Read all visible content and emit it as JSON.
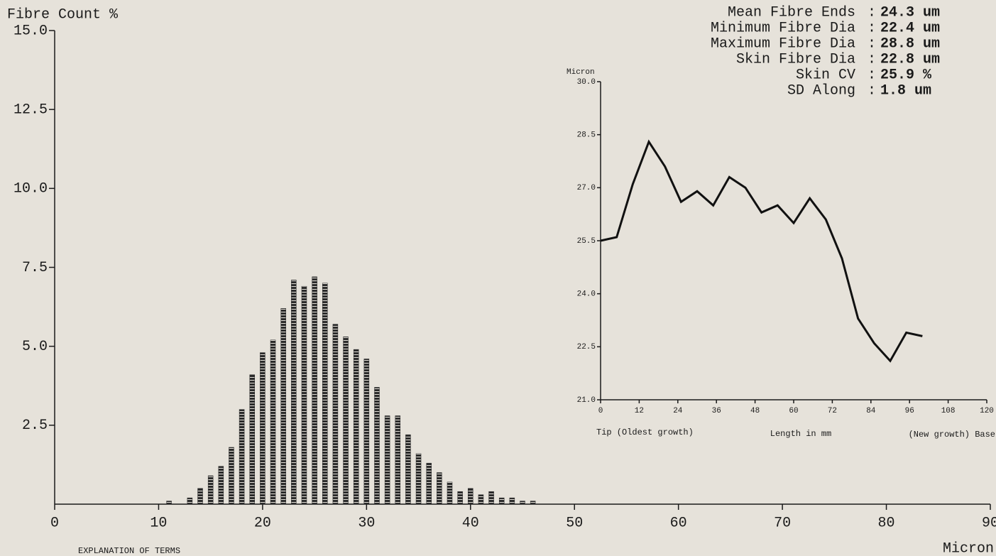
{
  "chart_data": [
    {
      "type": "bar",
      "ylabel": "Fibre Count %",
      "xlabel": "Micron",
      "color": "#2a2a2a",
      "x": [
        11,
        12,
        13,
        14,
        15,
        16,
        17,
        18,
        19,
        20,
        21,
        22,
        23,
        24,
        25,
        26,
        27,
        28,
        29,
        30,
        31,
        32,
        33,
        34,
        35,
        36,
        37,
        38,
        39,
        40,
        41,
        42,
        43,
        44,
        45,
        46
      ],
      "values": [
        0.1,
        0,
        0.2,
        0.5,
        0.9,
        1.2,
        1.8,
        3.0,
        4.1,
        4.8,
        5.2,
        6.2,
        7.1,
        6.9,
        7.2,
        7.0,
        5.7,
        5.3,
        4.9,
        4.6,
        3.7,
        2.8,
        2.8,
        2.2,
        1.6,
        1.3,
        1.0,
        0.7,
        0.4,
        0.5,
        0.3,
        0.4,
        0.2,
        0.2,
        0.1,
        0.1
      ],
      "xlim": [
        0,
        90
      ],
      "ylim": [
        0,
        15
      ],
      "xticks": [
        0,
        10,
        20,
        30,
        40,
        50,
        60,
        70,
        80,
        90
      ],
      "yticks": [
        2.5,
        {
          "value": 5,
          "label": "5.0"
        },
        7.5,
        {
          "value": 10,
          "label": "10.0"
        },
        12.5,
        {
          "value": 15,
          "label": "15.0"
        }
      ]
    },
    {
      "type": "line",
      "ylabel": "Micron",
      "xlabel": "Length in mm",
      "color": "#111111",
      "annotations": [
        "Tip (Oldest growth)",
        "(New growth) Base"
      ],
      "x": [
        0,
        5,
        10,
        15,
        20,
        25,
        30,
        35,
        40,
        45,
        50,
        55,
        60,
        65,
        70,
        75,
        80,
        85,
        90,
        95,
        100
      ],
      "values": [
        25.5,
        25.6,
        27.1,
        28.3,
        27.6,
        26.6,
        26.9,
        26.5,
        27.3,
        27.0,
        26.3,
        26.5,
        26.0,
        26.7,
        26.1,
        25.0,
        23.3,
        22.6,
        22.1,
        22.9,
        22.8
      ],
      "xlim": [
        0,
        120
      ],
      "ylim": [
        21,
        30
      ],
      "xticks": [
        0,
        12,
        24,
        36,
        48,
        60,
        72,
        84,
        96,
        108,
        120
      ],
      "yticks": [
        {
          "value": 21,
          "label": "21.0"
        },
        22.5,
        {
          "value": 24,
          "label": "24.0"
        },
        25.5,
        {
          "value": 27,
          "label": "27.0"
        },
        28.5,
        {
          "value": 30,
          "label": "30.0"
        }
      ]
    }
  ],
  "separator": ":",
  "stats": [
    {
      "label": "Mean Fibre Ends",
      "value": "24.3 um"
    },
    {
      "label": "Minimum Fibre Dia",
      "value": "22.4 um"
    },
    {
      "label": "Maximum Fibre Dia",
      "value": "28.8 um"
    },
    {
      "label": "Skin Fibre Dia",
      "value": "22.8 um"
    },
    {
      "label": "Skin CV",
      "value": "25.9 %"
    },
    {
      "label": "SD Along",
      "value": "1.8 um"
    }
  ],
  "footer": "EXPLANATION OF TERMS"
}
